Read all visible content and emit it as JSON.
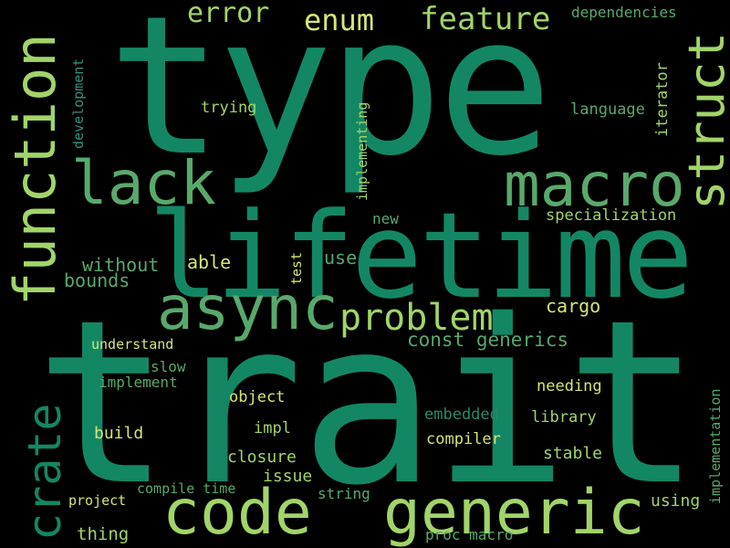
{
  "palette": {
    "background": "#000000",
    "teal_dark": "#138764",
    "green_mid": "#58a96c",
    "green_light": "#a2d469",
    "yellow": "#d4e675",
    "teal_soft": "#35917b"
  },
  "words": {
    "type": "type",
    "trait": "trait",
    "lifetime": "lifetime",
    "function": "function",
    "lack": "lack",
    "macro": "macro",
    "struct": "struct",
    "async": "async",
    "problem": "problem",
    "code": "code",
    "generic": "generic",
    "crate": "crate",
    "error": "error",
    "enum": "enum",
    "feature": "feature",
    "dependencies": "dependencies",
    "development": "development",
    "trying": "trying",
    "implementing": "implementing",
    "language": "language",
    "iterator": "iterator",
    "new": "new",
    "specialization": "specialization",
    "without": "without",
    "bounds": "bounds",
    "able": "able",
    "test": "test",
    "use": "use",
    "cargo": "cargo",
    "const_generics": "const generics",
    "understand": "understand",
    "slow": "slow",
    "implement": "implement",
    "object": "object",
    "needing": "needing",
    "implementation": "implementation",
    "embedded": "embedded",
    "library": "library",
    "build": "build",
    "impl": "impl",
    "compiler": "compiler",
    "closure": "closure",
    "stable": "stable",
    "issue": "issue",
    "compile_time": "compile time",
    "project": "project",
    "string": "string",
    "using": "using",
    "thing": "thing",
    "proc_macro": "proc macro"
  }
}
